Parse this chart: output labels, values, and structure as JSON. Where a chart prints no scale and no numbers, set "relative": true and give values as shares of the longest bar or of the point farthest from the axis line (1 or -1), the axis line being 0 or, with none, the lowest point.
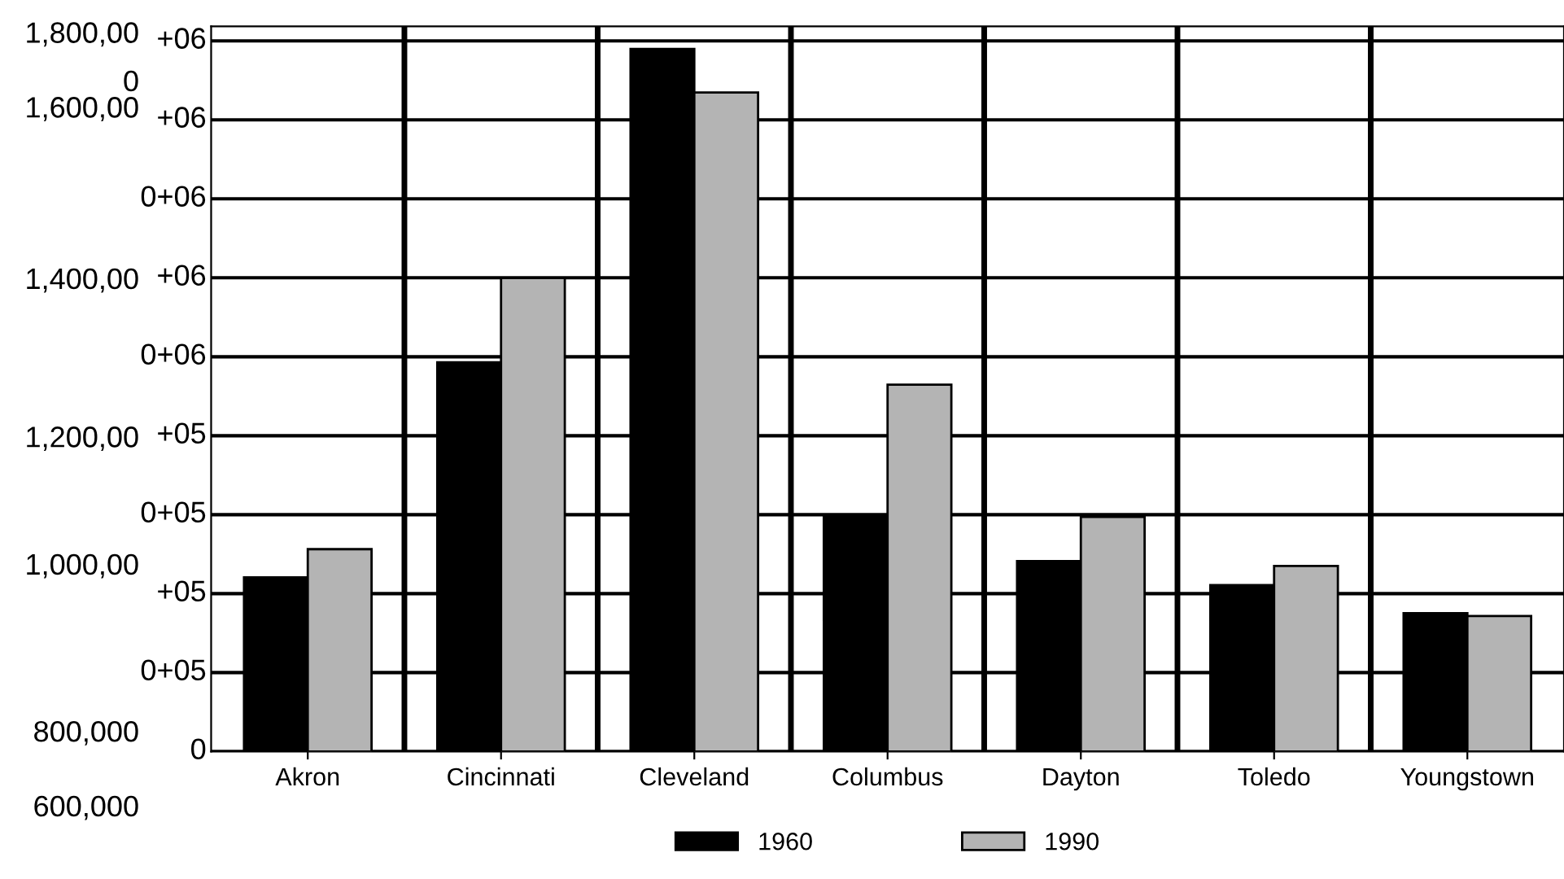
{
  "chart_data": {
    "type": "bar",
    "relative": true,
    "categories": [
      "Akron",
      "Cincinnati",
      "Cleveland",
      "Columbus",
      "Dayton",
      "Toledo",
      "Youngstown"
    ],
    "series": [
      {
        "name": "1960",
        "color": "#000000",
        "values": [
          0.248,
          0.554,
          1,
          0.337,
          0.271,
          0.237,
          0.197
        ]
      },
      {
        "name": "1990",
        "color": "#b4b4b4",
        "values": [
          0.288,
          0.674,
          0.938,
          0.522,
          0.334,
          0.264,
          0.193
        ]
      }
    ],
    "annotations": [
      "1,800,00",
      "0",
      "1,600,00",
      "1,400,00",
      "1,200,00",
      "1,000,00",
      "800,000",
      "600,000",
      "0",
      "0+05",
      "+05",
      "0+05",
      "+05",
      "0+06",
      "+06",
      "0+06",
      "+06",
      "+06"
    ],
    "grid": true,
    "legend": "bottom"
  }
}
